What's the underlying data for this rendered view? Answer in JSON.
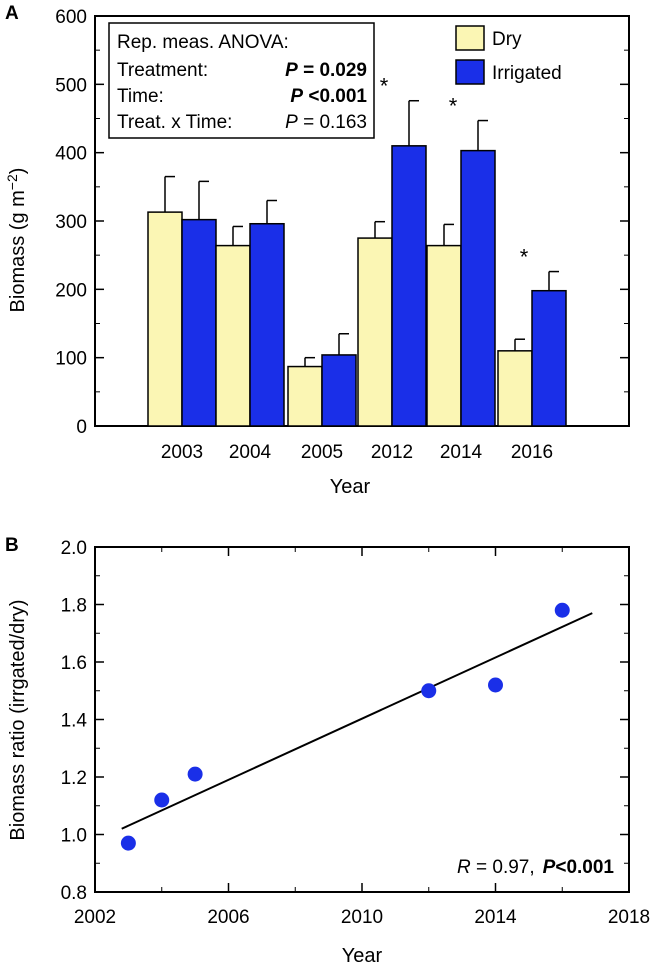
{
  "chart_data": [
    {
      "type": "bar",
      "panel_label": "A",
      "xlabel": "Year",
      "ylabel": "Biomass (g m",
      "ylabel_sup": "−2",
      "ylabel_end": ")",
      "ylim": [
        0,
        600
      ],
      "yticks": [
        "0",
        "100",
        "200",
        "300",
        "400",
        "500",
        "600"
      ],
      "categories": [
        "2003",
        "2004",
        "2005",
        "2012",
        "2014",
        "2016"
      ],
      "series": [
        {
          "name": "Dry",
          "color": "#fbf6b4",
          "values": [
            313,
            264,
            87,
            275,
            264,
            110
          ],
          "errors": [
            52,
            28,
            13,
            24,
            31,
            17
          ]
        },
        {
          "name": "Irrigated",
          "color": "#1a2fe8",
          "values": [
            302,
            296,
            104,
            410,
            403,
            198
          ],
          "errors": [
            56,
            34,
            31,
            66,
            44,
            28
          ]
        }
      ],
      "significance_marks": [
        "",
        "",
        "",
        "*",
        "*",
        "*"
      ],
      "legend_placement": "top-right",
      "stats_box": {
        "title": "Rep. meas. ANOVA:",
        "rows": [
          {
            "label": "Treatment:",
            "p_symbol": "P",
            "p_value": " = 0.029",
            "bold": true
          },
          {
            "label": "Time:",
            "p_symbol": "P",
            "p_value": " <0.001",
            "bold": true
          },
          {
            "label": "Treat. x Time:",
            "p_symbol": "P",
            "p_value": " = 0.163",
            "bold": false
          }
        ]
      }
    },
    {
      "type": "scatter",
      "panel_label": "B",
      "xlabel": "Year",
      "ylabel": "Biomass ratio (irrgated/dry)",
      "xlim": [
        2002,
        2018
      ],
      "ylim": [
        0.8,
        2.0
      ],
      "xticks": [
        2002,
        2006,
        2010,
        2014,
        2018
      ],
      "yticks": [
        "0.8",
        "1.0",
        "1.2",
        "1.4",
        "1.6",
        "1.8",
        "2.0"
      ],
      "point_color": "#1a2fe8",
      "x": [
        2003,
        2004,
        2005,
        2012,
        2014,
        2016
      ],
      "y": [
        0.97,
        1.12,
        1.21,
        1.5,
        1.52,
        1.78
      ],
      "fit_line": {
        "x": [
          2002.8,
          2016.9
        ],
        "y": [
          1.02,
          1.77
        ]
      },
      "annotation": {
        "r_symbol": "R",
        "r_text": " = 0.97,",
        "p_symbol": "P",
        "p_text": "<0.001"
      }
    }
  ]
}
